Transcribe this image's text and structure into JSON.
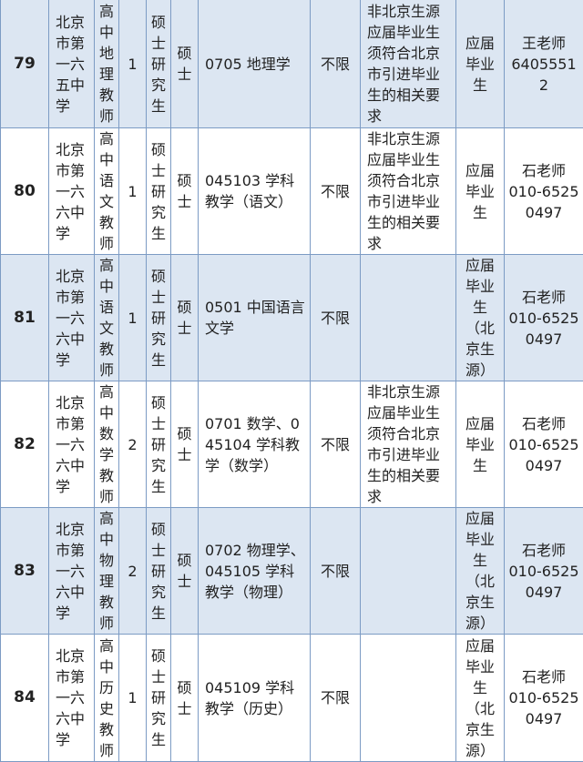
{
  "rows": [
    {
      "no": "79",
      "school": "北京市第一六五中学",
      "position": "高中地理教师",
      "count": "1",
      "education": "硕士研究生",
      "degree": "硕士",
      "major": "0705 地理学",
      "politics": "不限",
      "requirement": "非北京生源应届毕业生须符合北京市引进毕业生的相关要求",
      "type": "应届毕业生",
      "contact_name": "王老师",
      "contact_phone": "64055512",
      "bg": "#dce6f2"
    },
    {
      "no": "80",
      "school": "北京市第一六六中学",
      "position": "高中语文教师",
      "count": "1",
      "education": "硕士研究生",
      "degree": "硕士",
      "major": "045103 学科教学（语文）",
      "politics": "不限",
      "requirement": "非北京生源应届毕业生须符合北京市引进毕业生的相关要求",
      "type": "应届毕业生",
      "contact_name": "石老师",
      "contact_phone": "010-65250497",
      "bg": "#ffffff"
    },
    {
      "no": "81",
      "school": "北京市第一六六中学",
      "position": "高中语文教师",
      "count": "1",
      "education": "硕士研究生",
      "degree": "硕士",
      "major": "0501 中国语言文学",
      "politics": "不限",
      "requirement": "",
      "type": "应届毕业生（北京生源）",
      "contact_name": "石老师",
      "contact_phone": "010-65250497",
      "bg": "#dce6f2"
    },
    {
      "no": "82",
      "school": "北京市第一六六中学",
      "position": "高中数学教师",
      "count": "2",
      "education": "硕士研究生",
      "degree": "硕士",
      "major": "0701 数学、045104 学科教学（数学）",
      "politics": "不限",
      "requirement": "非北京生源应届毕业生须符合北京市引进毕业生的相关要求",
      "type": "应届毕业生",
      "contact_name": "石老师",
      "contact_phone": "010-65250497",
      "bg": "#ffffff"
    },
    {
      "no": "83",
      "school": "北京市第一六六中学",
      "position": "高中物理教师",
      "count": "2",
      "education": "硕士研究生",
      "degree": "硕士",
      "major": "0702 物理学、045105 学科教学（物理）",
      "politics": "不限",
      "requirement": "",
      "type": "应届毕业生（北京生源）",
      "contact_name": "石老师",
      "contact_phone": "010-65250497",
      "bg": "#dce6f2"
    },
    {
      "no": "84",
      "school": "北京市第一六六中学",
      "position": "高中历史教师",
      "count": "1",
      "education": "硕士研究生",
      "degree": "硕士",
      "major": "045109 学科教学（历史）",
      "politics": "不限",
      "requirement": "",
      "type": "应届毕业生（北京生源）",
      "contact_name": "石老师",
      "contact_phone": "010-65250497",
      "bg": "#ffffff"
    }
  ],
  "colors": {
    "border": "#7c9bc4",
    "row_blue": "#dce6f2",
    "row_white": "#ffffff"
  }
}
